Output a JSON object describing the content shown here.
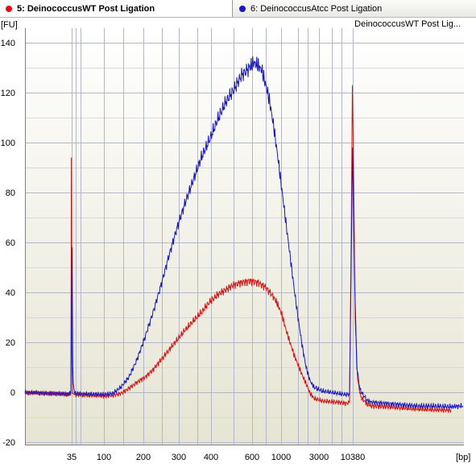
{
  "tabs": [
    {
      "label": "5: DeinococcusWT Post Ligation",
      "color": "#e01010"
    },
    {
      "label": "6: DeinococcusAtcc Post Ligation",
      "color": "#1818c8"
    }
  ],
  "chart_data": {
    "type": "line",
    "legend": "DeinococcusWT Post Lig...",
    "ylabel": "[FU]",
    "xlabel": "[bp]",
    "ylim": [
      -21,
      143
    ],
    "yticks": [
      -20,
      0,
      20,
      40,
      60,
      80,
      100,
      120,
      140
    ],
    "xticks": [
      {
        "label": "35",
        "pos": 89
      },
      {
        "label": "100",
        "pos": 129
      },
      {
        "label": "200",
        "pos": 178
      },
      {
        "label": "300",
        "pos": 222
      },
      {
        "label": "400",
        "pos": 262
      },
      {
        "label": "600",
        "pos": 313
      },
      {
        "label": "1000",
        "pos": 349
      },
      {
        "label": "3000",
        "pos": 396
      },
      {
        "label": "10380",
        "pos": 438
      }
    ],
    "grid_lines_x": [
      89,
      94,
      100,
      129,
      153,
      178,
      201,
      222,
      245,
      262,
      290,
      313,
      330,
      349,
      370,
      382,
      396,
      412,
      424,
      438
    ],
    "series": [
      {
        "name": "5: DeinococcusWT Post Ligation",
        "color": "#e01010",
        "points": [
          [
            31,
            -0.2
          ],
          [
            50,
            -0.3
          ],
          [
            70,
            -0.5
          ],
          [
            85,
            -1.0
          ],
          [
            88,
            -0.5
          ],
          [
            88.6,
            94
          ],
          [
            89.2,
            20
          ],
          [
            90,
            -0.4
          ],
          [
            93,
            -1.0
          ],
          [
            110,
            -1.2
          ],
          [
            130,
            -1.5
          ],
          [
            140,
            -1.2
          ],
          [
            150,
            -0.5
          ],
          [
            160,
            1.5
          ],
          [
            170,
            4
          ],
          [
            180,
            6
          ],
          [
            190,
            9
          ],
          [
            200,
            13
          ],
          [
            210,
            17
          ],
          [
            220,
            21
          ],
          [
            230,
            25
          ],
          [
            240,
            28.5
          ],
          [
            250,
            32
          ],
          [
            260,
            36
          ],
          [
            270,
            39
          ],
          [
            280,
            41
          ],
          [
            290,
            43
          ],
          [
            300,
            44
          ],
          [
            310,
            44.5
          ],
          [
            320,
            44
          ],
          [
            330,
            42
          ],
          [
            340,
            38
          ],
          [
            345,
            35
          ],
          [
            350,
            31
          ],
          [
            355,
            25
          ],
          [
            360,
            20
          ],
          [
            365,
            15
          ],
          [
            370,
            11
          ],
          [
            375,
            7
          ],
          [
            380,
            3.5
          ],
          [
            385,
            -0.5
          ],
          [
            390,
            -2.5
          ],
          [
            400,
            -3.5
          ],
          [
            410,
            -3.8
          ],
          [
            420,
            -4
          ],
          [
            430,
            -4.5
          ],
          [
            434,
            -4
          ],
          [
            436,
            60
          ],
          [
            437.5,
            123
          ],
          [
            439,
            90
          ],
          [
            441,
            30
          ],
          [
            444,
            5
          ],
          [
            448,
            -2
          ],
          [
            455,
            -4.5
          ],
          [
            460,
            -5.5
          ],
          [
            480,
            -5.8
          ],
          [
            500,
            -6.3
          ],
          [
            520,
            -6.8
          ],
          [
            540,
            -7
          ],
          [
            560,
            -7.2
          ]
        ]
      },
      {
        "name": "6: DeinococcusAtcc Post Ligation",
        "color": "#1818c8",
        "points": [
          [
            31,
            0
          ],
          [
            50,
            -0.3
          ],
          [
            70,
            -0.5
          ],
          [
            85,
            -0.7
          ],
          [
            88,
            0
          ],
          [
            89,
            40
          ],
          [
            89.6,
            58
          ],
          [
            90.3,
            10
          ],
          [
            91,
            3
          ],
          [
            93,
            -0.5
          ],
          [
            110,
            -0.8
          ],
          [
            130,
            -1.0
          ],
          [
            140,
            -0.5
          ],
          [
            150,
            2
          ],
          [
            160,
            6
          ],
          [
            170,
            13
          ],
          [
            180,
            22
          ],
          [
            190,
            32
          ],
          [
            200,
            43
          ],
          [
            210,
            55
          ],
          [
            220,
            66
          ],
          [
            230,
            76
          ],
          [
            240,
            85
          ],
          [
            250,
            94
          ],
          [
            260,
            101
          ],
          [
            270,
            109
          ],
          [
            280,
            116
          ],
          [
            290,
            121
          ],
          [
            300,
            127
          ],
          [
            310,
            130
          ],
          [
            315,
            132
          ],
          [
            320,
            131
          ],
          [
            325,
            129
          ],
          [
            330,
            123
          ],
          [
            335,
            116
          ],
          [
            340,
            106
          ],
          [
            345,
            94
          ],
          [
            350,
            81
          ],
          [
            355,
            68
          ],
          [
            360,
            55
          ],
          [
            365,
            42
          ],
          [
            370,
            30
          ],
          [
            375,
            19
          ],
          [
            380,
            10
          ],
          [
            385,
            4.5
          ],
          [
            390,
            2
          ],
          [
            400,
            0.5
          ],
          [
            410,
            0
          ],
          [
            420,
            -0.5
          ],
          [
            430,
            -1
          ],
          [
            434,
            -0.5
          ],
          [
            436,
            50
          ],
          [
            437.8,
            98
          ],
          [
            440,
            50
          ],
          [
            443,
            10
          ],
          [
            447,
            1
          ],
          [
            455,
            -3
          ],
          [
            460,
            -4
          ],
          [
            480,
            -4.5
          ],
          [
            500,
            -5
          ],
          [
            520,
            -5.5
          ],
          [
            540,
            -5.5
          ],
          [
            560,
            -5.8
          ],
          [
            575,
            -5.5
          ]
        ]
      }
    ]
  }
}
